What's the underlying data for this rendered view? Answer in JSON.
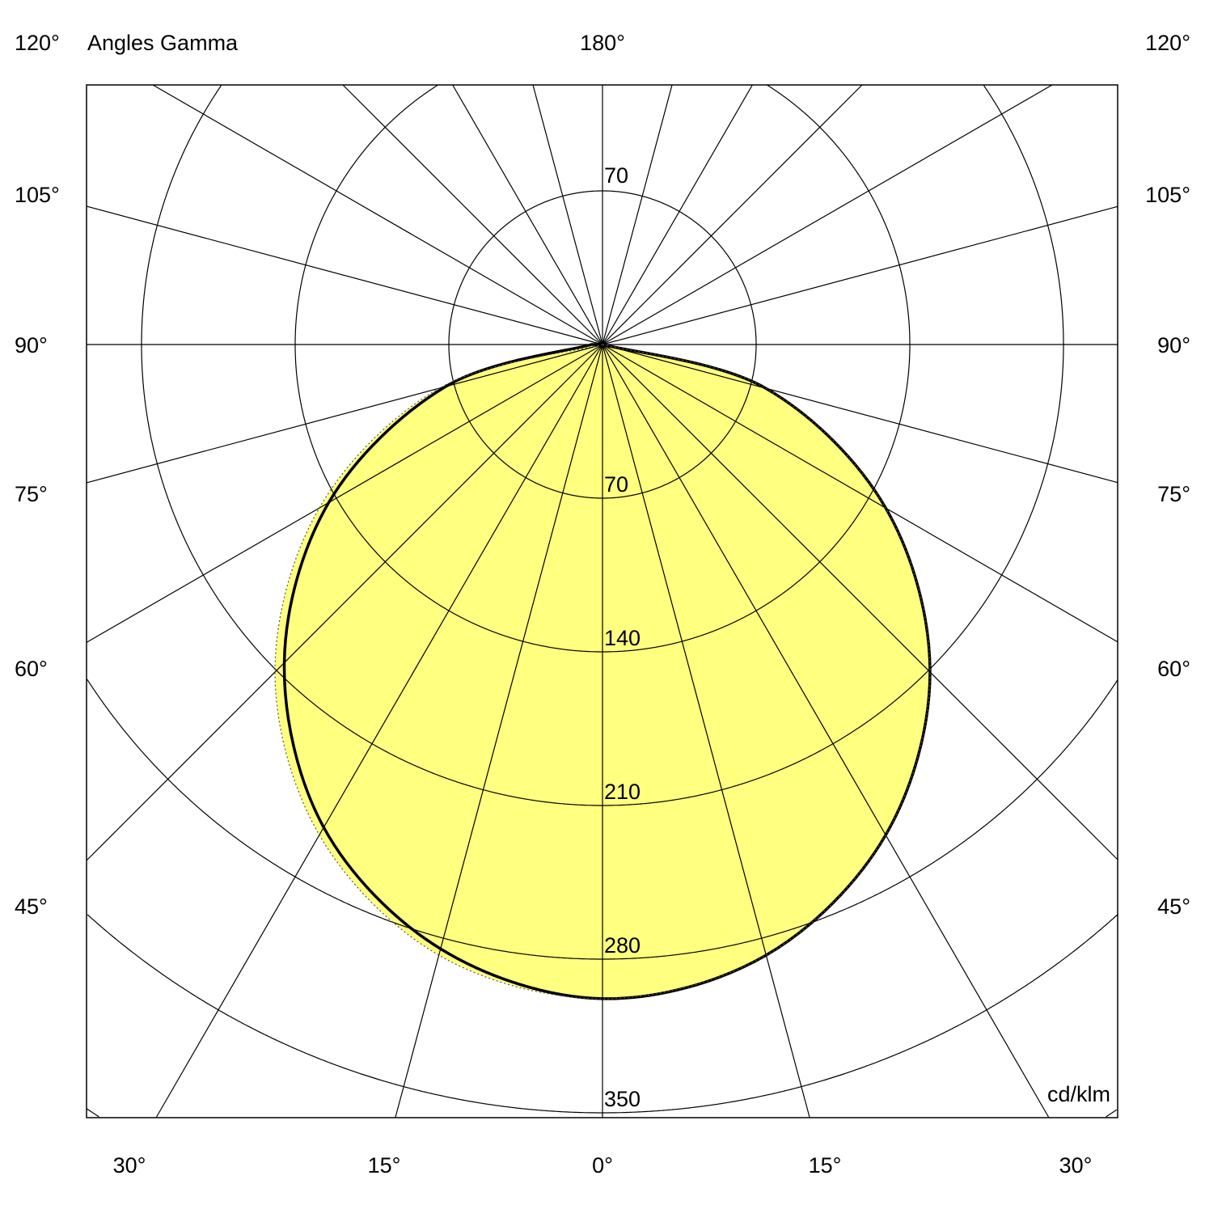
{
  "chart_data": {
    "type": "polar",
    "title": "Angles Gamma",
    "unit": "cd/klm",
    "rlim": [
      0,
      350
    ],
    "ring_values": [
      70,
      140,
      210,
      280,
      350
    ],
    "ring_labels": [
      "70",
      "140",
      "210",
      "280",
      "350"
    ],
    "top_ring_label": "70",
    "grid": true,
    "radial_step_deg": 15,
    "angle_labels_top": {
      "left": "120°",
      "center": "180°",
      "right": "120°"
    },
    "angle_labels_side": [
      "105°",
      "90°",
      "75°",
      "60°",
      "45°"
    ],
    "angle_labels_bottom": [
      "30°",
      "15°",
      "0°",
      "15°",
      "30°"
    ],
    "fill_color": "#ffff80",
    "series": [
      {
        "style": "solid",
        "angles": [
          -90,
          -75,
          -60,
          -45,
          -30,
          -15,
          0,
          15,
          30,
          45,
          60,
          75,
          90
        ],
        "values": [
          0,
          77,
          149,
          211,
          258,
          288,
          298,
          285,
          254,
          205,
          144,
          74,
          5
        ]
      },
      {
        "style": "dotted",
        "angles": [
          -90,
          -75,
          -60,
          -45,
          -30,
          -15,
          0,
          15,
          30,
          45,
          60,
          75,
          90
        ],
        "values": [
          0,
          77,
          149,
          211,
          258,
          288,
          298,
          288,
          258,
          211,
          149,
          77,
          0
        ]
      }
    ]
  }
}
